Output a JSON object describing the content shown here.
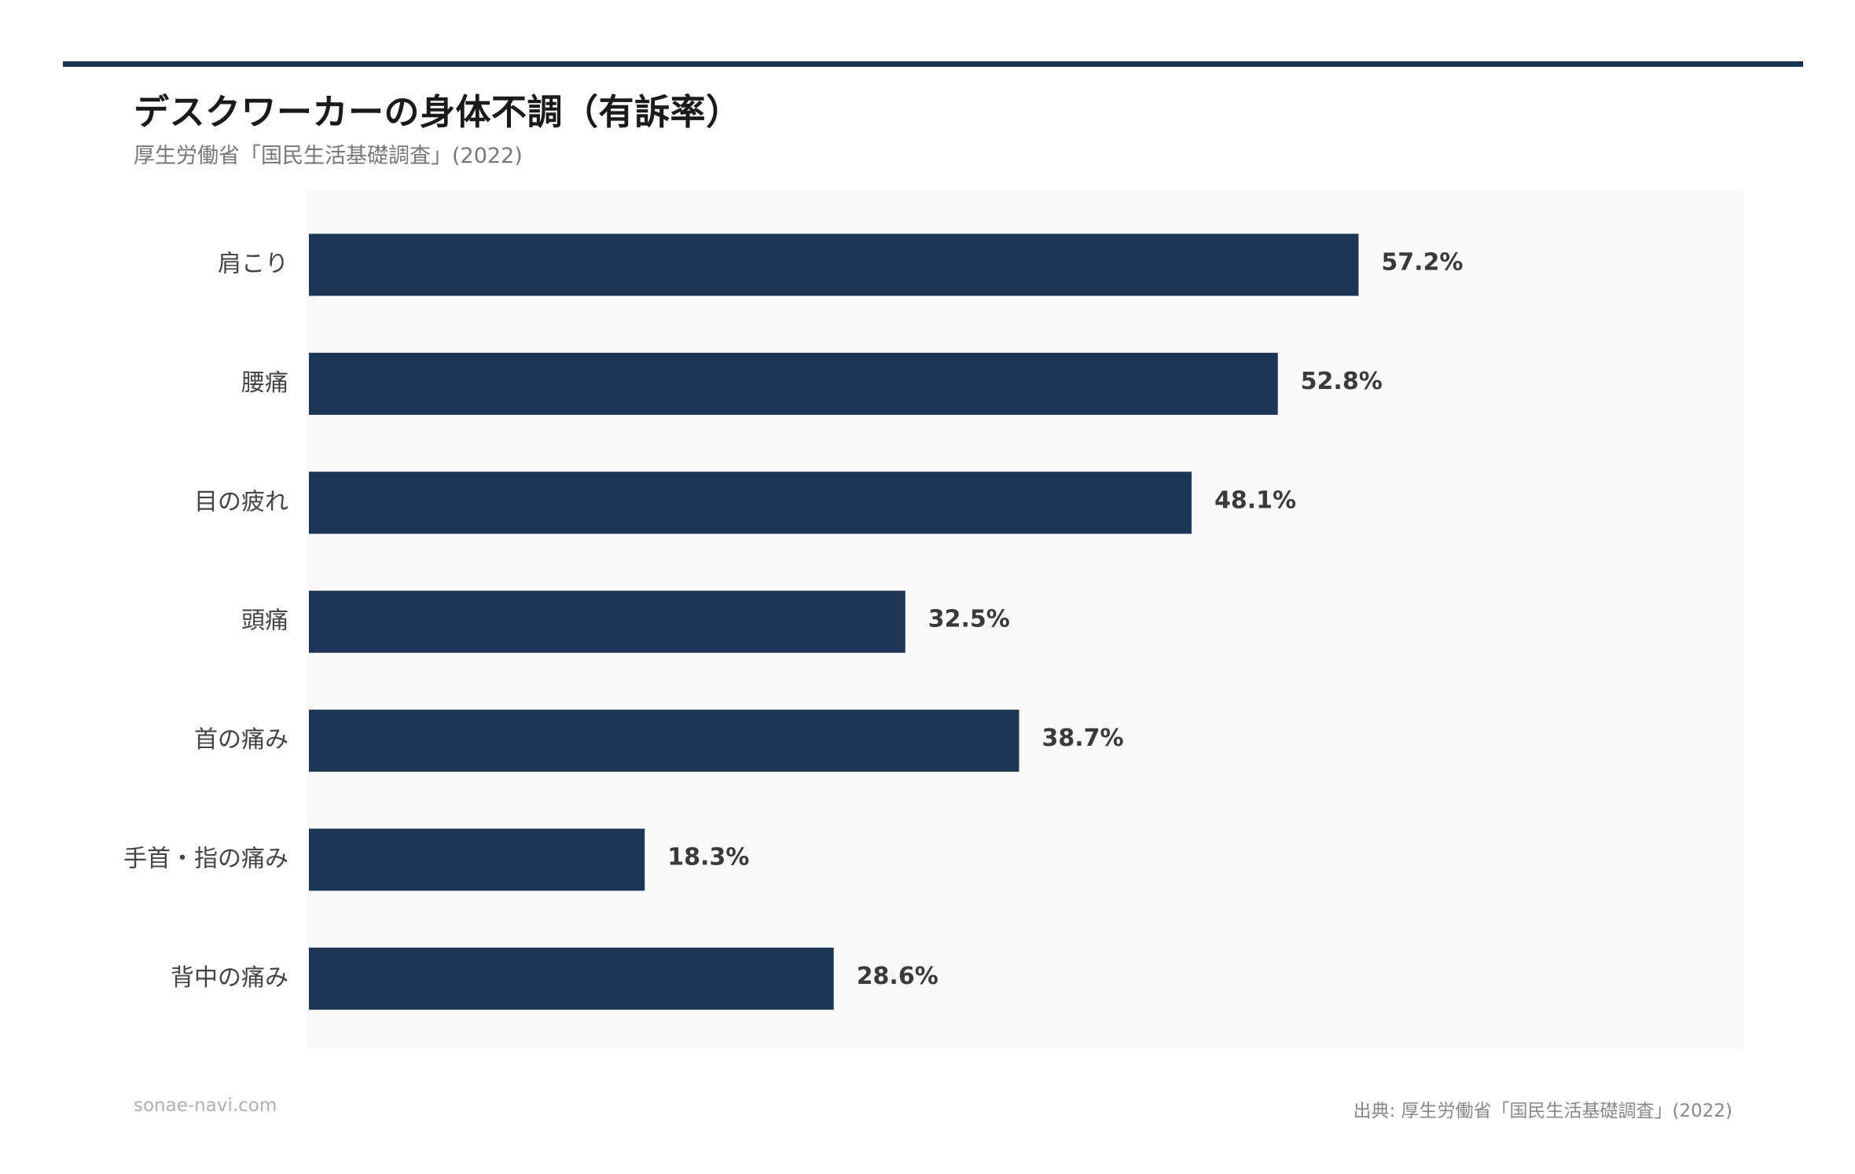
{
  "header": {
    "title": "デスクワーカーの身体不調（有訴率）",
    "subtitle": "厚生労働省「国民生活基礎調査」(2022)"
  },
  "footer": {
    "site": "sonae-navi.com",
    "source": "出典: 厚生労働省「国民生活基礎調査」(2022)"
  },
  "colors": {
    "bar": "#1d3557",
    "plot_background": "#f9f9f9",
    "accent_rule": "#1d3557"
  },
  "chart_data": {
    "type": "bar",
    "orientation": "horizontal",
    "title": "デスクワーカーの身体不調（有訴率）",
    "subtitle": "厚生労働省「国民生活基礎調査」(2022)",
    "categories": [
      "肩こり",
      "腰痛",
      "目の疲れ",
      "頭痛",
      "首の痛み",
      "手首・指の痛み",
      "背中の痛み"
    ],
    "values": [
      57.2,
      52.8,
      48.1,
      32.5,
      38.7,
      18.3,
      28.6
    ],
    "value_labels": [
      "57.2%",
      "52.8%",
      "48.1%",
      "32.5%",
      "38.7%",
      "18.3%",
      "28.6%"
    ],
    "unit": "%",
    "xlim": [
      0,
      77.4
    ],
    "grid": false,
    "legend": "none"
  }
}
